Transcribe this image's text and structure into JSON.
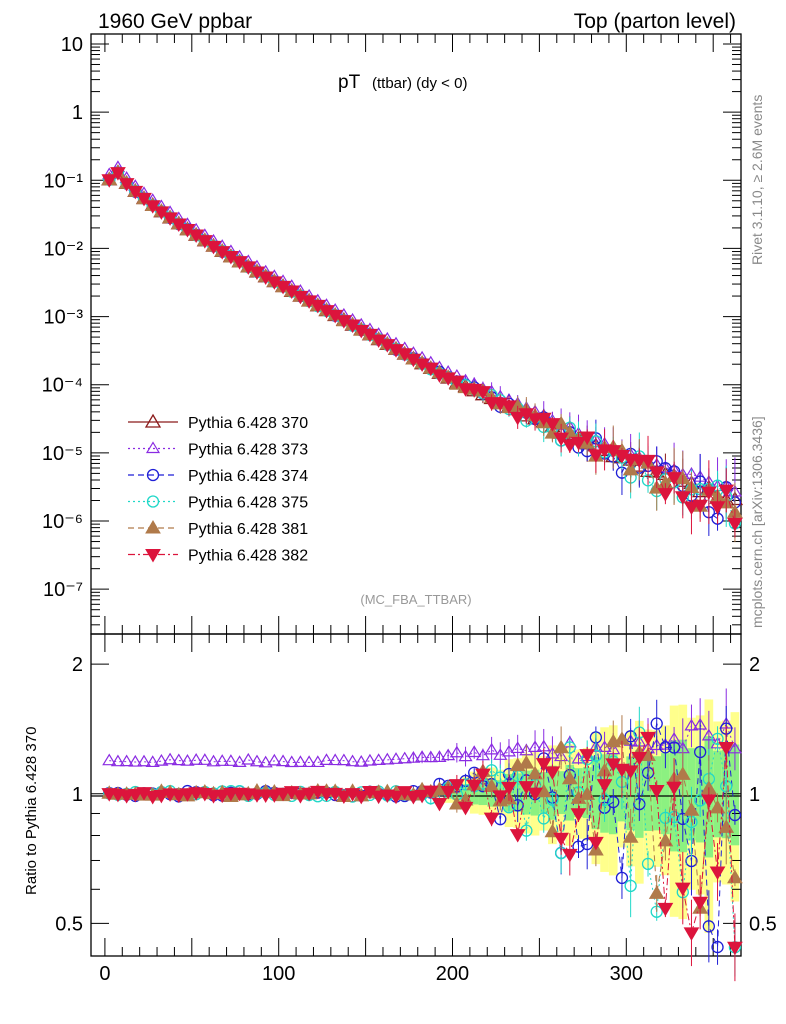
{
  "header": {
    "left": "1960 GeV ppbar",
    "right": "Top (parton level)"
  },
  "side_labels": {
    "rivet": "Rivet 3.1.10, ≥ 2.6M events",
    "mcplots": "mcplots.cern.ch [arXiv:1306.3436]"
  },
  "plot_title": {
    "main": "pT",
    "sub": "(ttbar) (dy < 0)"
  },
  "analysis_tag": "(MC_FBA_TTBAR)",
  "ratio_ylabel": "Ratio to Pythia 6.428 370",
  "colors": {
    "s370": "#8b1a1a",
    "s373": "#8a2be2",
    "s374": "#1f1fd6",
    "s375": "#20d8c8",
    "s381": "#b07a4a",
    "s382": "#dc143c",
    "band_yellow": "#ffff80",
    "band_green": "#80f080"
  },
  "chart_data": [
    {
      "type": "scatter",
      "panel": "main",
      "xlabel": "",
      "ylabel": "",
      "yscale": "log",
      "xlim": [
        -8,
        366
      ],
      "ylim": [
        2.2e-08,
        14
      ],
      "y_tick_labels": [
        "10⁻⁷",
        "10⁻⁶",
        "10⁻⁵",
        "10⁻⁴",
        "10⁻³",
        "10⁻²",
        "10⁻¹",
        "1",
        "10"
      ],
      "legend_position": "left-middle",
      "spectrum_model": {
        "x_start": 2.5,
        "x_end": 362.5,
        "bin_width": 5,
        "peak_x": 7.5,
        "peak_y": 0.13,
        "y_at_0": 0.09,
        "y_at_100": 0.003,
        "y_at_200": 0.000115,
        "y_at_300": 7.5e-06,
        "y_at_360": 2.1e-06
      },
      "series": [
        {
          "name": "Pythia 6.428 370",
          "marker": "triangle-open",
          "line": "solid",
          "color": "#8b1a1a"
        },
        {
          "name": "Pythia 6.428 373",
          "marker": "triangle-open-small",
          "line": "dotted",
          "color": "#8a2be2"
        },
        {
          "name": "Pythia 6.428 374",
          "marker": "circle-open",
          "line": "dashed",
          "color": "#1f1fd6"
        },
        {
          "name": "Pythia 6.428 375",
          "marker": "circle-open",
          "line": "dotted",
          "color": "#20d8c8"
        },
        {
          "name": "Pythia 6.428 381",
          "marker": "triangle-filled",
          "line": "dashed",
          "color": "#b07a4a"
        },
        {
          "name": "Pythia 6.428 382",
          "marker": "triangle-down-filled",
          "line": "dashdot",
          "color": "#dc143c"
        }
      ]
    },
    {
      "type": "scatter",
      "panel": "ratio",
      "xlabel": "",
      "ylabel": "Ratio to Pythia 6.428 370",
      "yscale": "log",
      "xlim": [
        -8,
        366
      ],
      "ylim": [
        0.42,
        2.35
      ],
      "x_ticks": [
        0,
        100,
        200,
        300
      ],
      "y_tick_labels": [
        "0.5",
        "1",
        "2"
      ],
      "reference_line": 1,
      "ratio_trends": {
        "s373": {
          "low_x": [
            0,
            150
          ],
          "value": 1.19,
          "high_x_value": 1.3
        },
        "s374": {
          "value": 1.0
        },
        "s375": {
          "value": 1.0
        },
        "s381": {
          "value": 1.0
        },
        "s382": {
          "value": 1.0
        }
      },
      "band_note": "yellow and green uncertainty bands growing from ~x=200 to 360"
    }
  ]
}
